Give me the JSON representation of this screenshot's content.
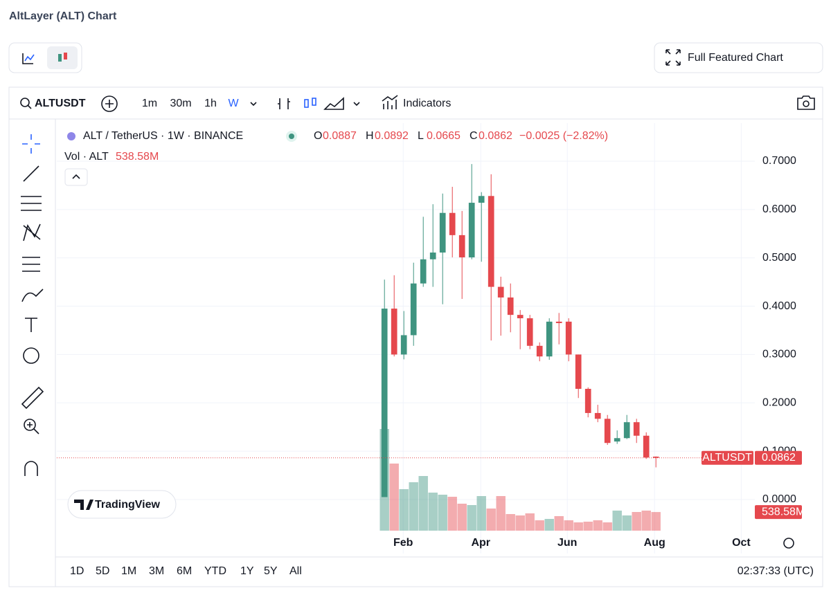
{
  "header": {
    "title": "AltLayer (ALT) Chart",
    "full_chart": "Full Featured Chart"
  },
  "toolbar": {
    "symbol": "ALTUSDT",
    "intervals": [
      "1m",
      "30m",
      "1h",
      "W"
    ],
    "indicators": "Indicators"
  },
  "legend": {
    "symbol": "ALT / TetherUS · 1W · BINANCE",
    "open": "O",
    "high": "H",
    "low": "L",
    "close": "C",
    "change": "−0.0025 (−2.82%)",
    "volume": "Vol · ALT"
  },
  "chart_data": {
    "type": "candlestick",
    "categories": [
      null,
      null,
      null,
      null,
      null,
      null,
      null,
      null,
      null,
      null,
      null,
      null,
      null,
      null,
      null,
      null,
      null,
      null,
      null,
      null,
      null,
      null,
      null,
      null,
      null,
      null,
      null,
      null,
      null
    ],
    "open": [
      0.005,
      0.395,
      0.3,
      0.34,
      0.447,
      0.497,
      0.511,
      0.593,
      0.547,
      0.501,
      0.614,
      0.628,
      0.44,
      0.418,
      0.382,
      0.375,
      0.318,
      0.296,
      0.368,
      0.368,
      0.3,
      0.229,
      0.179,
      0.167,
      0.12,
      0.127,
      0.16,
      0.132,
      0.0887
    ],
    "high": [
      0.455,
      0.464,
      0.39,
      0.49,
      0.585,
      0.611,
      0.633,
      0.647,
      0.597,
      0.694,
      0.636,
      0.673,
      0.461,
      0.447,
      0.392,
      0.382,
      0.325,
      0.375,
      0.386,
      0.375,
      0.3,
      0.232,
      0.196,
      0.175,
      0.143,
      0.175,
      0.167,
      0.139,
      0.0892
    ],
    "low": [
      0.005,
      0.296,
      0.29,
      0.318,
      0.44,
      0.44,
      0.404,
      0.501,
      0.415,
      0.497,
      0.492,
      0.329,
      0.339,
      0.346,
      0.311,
      0.311,
      0.286,
      0.289,
      0.321,
      0.286,
      0.21,
      0.17,
      0.16,
      0.113,
      0.115,
      0.125,
      0.117,
      0.084,
      0.0665
    ],
    "close": [
      0.395,
      0.3,
      0.34,
      0.447,
      0.497,
      0.511,
      0.593,
      0.547,
      0.501,
      0.614,
      0.628,
      0.44,
      0.418,
      0.382,
      0.375,
      0.318,
      0.296,
      0.368,
      0.365,
      0.3,
      0.229,
      0.179,
      0.167,
      0.117,
      0.127,
      0.16,
      0.132,
      0.087,
      0.0862
    ],
    "volume": [
      2940,
      1940,
      1200,
      1400,
      1580,
      1100,
      1040,
      980,
      780,
      740,
      1000,
      640,
      1000,
      480,
      440,
      500,
      300,
      340,
      420,
      300,
      240,
      260,
      300,
      240,
      580,
      440,
      540,
      580,
      538.58
    ],
    "volume_value_labels": [
      null,
      null,
      null,
      null,
      null,
      null,
      null,
      null,
      null,
      null,
      null,
      null,
      null,
      null,
      null,
      null,
      null,
      null,
      null,
      null,
      null,
      null,
      null,
      null,
      null,
      null,
      null,
      null,
      "538.58M"
    ],
    "up_color": "#3f9480",
    "down_color": "#e5484d",
    "xlim": [
      -33.8,
      38.2
    ],
    "xticks": [
      {
        "value": 1.93,
        "label": "Feb"
      },
      {
        "value": 9.93,
        "label": "Apr"
      },
      {
        "value": 18.86,
        "label": "Jun"
      },
      {
        "value": 27.86,
        "label": "Aug"
      },
      {
        "value": 36.8,
        "label": "Oct"
      }
    ],
    "ylim": [
      -0.1117,
      0.7787
    ],
    "yticks": [
      {
        "value": 0,
        "label": "0.0000"
      },
      {
        "value": 0.1,
        "label": "0.1000"
      },
      {
        "value": 0.2,
        "label": "0.2000"
      },
      {
        "value": 0.3,
        "label": "0.3000"
      },
      {
        "value": 0.4,
        "label": "0.4000"
      },
      {
        "value": 0.5,
        "label": "0.5000"
      },
      {
        "value": 0.6,
        "label": "0.6000"
      },
      {
        "value": 0.7,
        "label": "0.7000"
      }
    ],
    "grid": true
  },
  "ranges": [
    "1D",
    "5D",
    "1M",
    "3M",
    "6M",
    "YTD",
    "1Y",
    "5Y",
    "All"
  ],
  "clock": "02:37:33 (UTC)",
  "brand": "TradingView"
}
